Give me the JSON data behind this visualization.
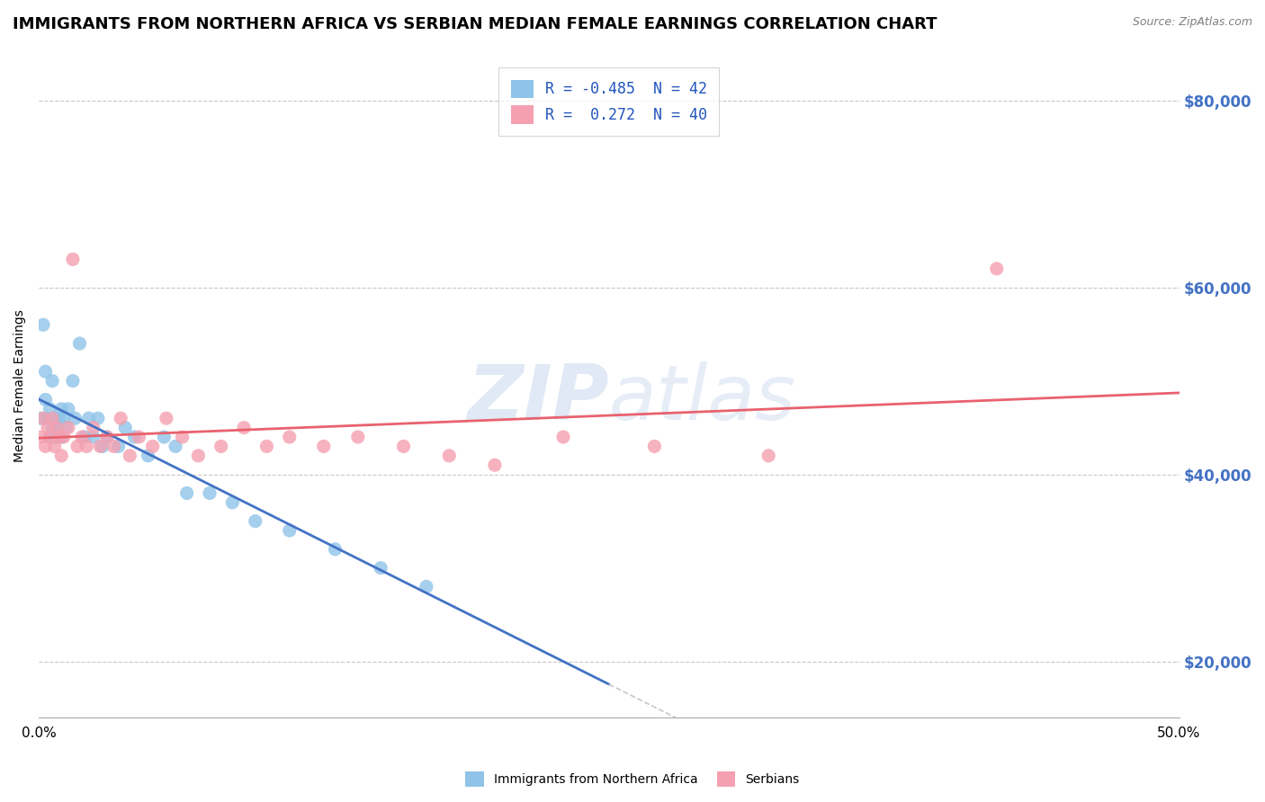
{
  "title": "IMMIGRANTS FROM NORTHERN AFRICA VS SERBIAN MEDIAN FEMALE EARNINGS CORRELATION CHART",
  "source": "Source: ZipAtlas.com",
  "ylabel": "Median Female Earnings",
  "series": [
    {
      "name": "Immigrants from Northern Africa",
      "color": "#8fc4e8",
      "R": -0.485,
      "N": 42,
      "x": [
        0.001,
        0.002,
        0.003,
        0.003,
        0.004,
        0.005,
        0.005,
        0.006,
        0.006,
        0.007,
        0.007,
        0.008,
        0.008,
        0.009,
        0.01,
        0.01,
        0.011,
        0.012,
        0.013,
        0.015,
        0.016,
        0.018,
        0.02,
        0.022,
        0.024,
        0.026,
        0.028,
        0.03,
        0.035,
        0.038,
        0.042,
        0.048,
        0.055,
        0.06,
        0.065,
        0.075,
        0.085,
        0.095,
        0.11,
        0.13,
        0.15,
        0.17
      ],
      "y": [
        46000,
        56000,
        51000,
        48000,
        46000,
        47000,
        44000,
        50000,
        45000,
        46000,
        44000,
        45000,
        44000,
        46000,
        47000,
        44000,
        46000,
        45000,
        47000,
        50000,
        46000,
        54000,
        44000,
        46000,
        44000,
        46000,
        43000,
        44000,
        43000,
        45000,
        44000,
        42000,
        44000,
        43000,
        38000,
        38000,
        37000,
        35000,
        34000,
        32000,
        30000,
        28000
      ]
    },
    {
      "name": "Serbians",
      "color": "#f4a0b0",
      "R": 0.272,
      "N": 40,
      "x": [
        0.001,
        0.002,
        0.003,
        0.004,
        0.005,
        0.006,
        0.007,
        0.008,
        0.009,
        0.01,
        0.011,
        0.013,
        0.015,
        0.017,
        0.019,
        0.021,
        0.024,
        0.027,
        0.03,
        0.033,
        0.036,
        0.04,
        0.044,
        0.05,
        0.056,
        0.063,
        0.07,
        0.08,
        0.09,
        0.1,
        0.11,
        0.125,
        0.14,
        0.16,
        0.18,
        0.2,
        0.23,
        0.27,
        0.32,
        0.42
      ],
      "y": [
        44000,
        46000,
        43000,
        45000,
        44000,
        46000,
        43000,
        45000,
        44000,
        42000,
        44000,
        45000,
        63000,
        43000,
        44000,
        43000,
        45000,
        43000,
        44000,
        43000,
        46000,
        42000,
        44000,
        43000,
        46000,
        44000,
        42000,
        43000,
        45000,
        43000,
        44000,
        43000,
        44000,
        43000,
        42000,
        41000,
        44000,
        43000,
        42000,
        62000
      ]
    }
  ],
  "xlim": [
    0.0,
    0.5
  ],
  "ylim": [
    14000,
    85000
  ],
  "yticks": [
    20000,
    40000,
    60000,
    80000
  ],
  "ytick_labels": [
    "$20,000",
    "$40,000",
    "$60,000",
    "$80,000"
  ],
  "xticks": [
    0.0,
    0.05,
    0.1,
    0.15,
    0.2,
    0.25,
    0.3,
    0.35,
    0.4,
    0.45,
    0.5
  ],
  "xtick_labels_show": [
    "0.0%",
    "",
    "",
    "",
    "",
    "",
    "",
    "",
    "",
    "",
    "50.0%"
  ],
  "watermark_zip": "ZIP",
  "watermark_atlas": "atlas",
  "legend_loc": "upper center",
  "blue_trend_color": "#4472c4",
  "pink_trend_color": "#e8626e",
  "background_color": "#ffffff",
  "grid_color": "#c8c8c8",
  "title_fontsize": 13,
  "axis_label_fontsize": 10,
  "tick_fontsize": 11,
  "legend_fontsize": 12,
  "blue_trend_end_solid": 0.25,
  "blue_trend_end_dashed": 0.5
}
